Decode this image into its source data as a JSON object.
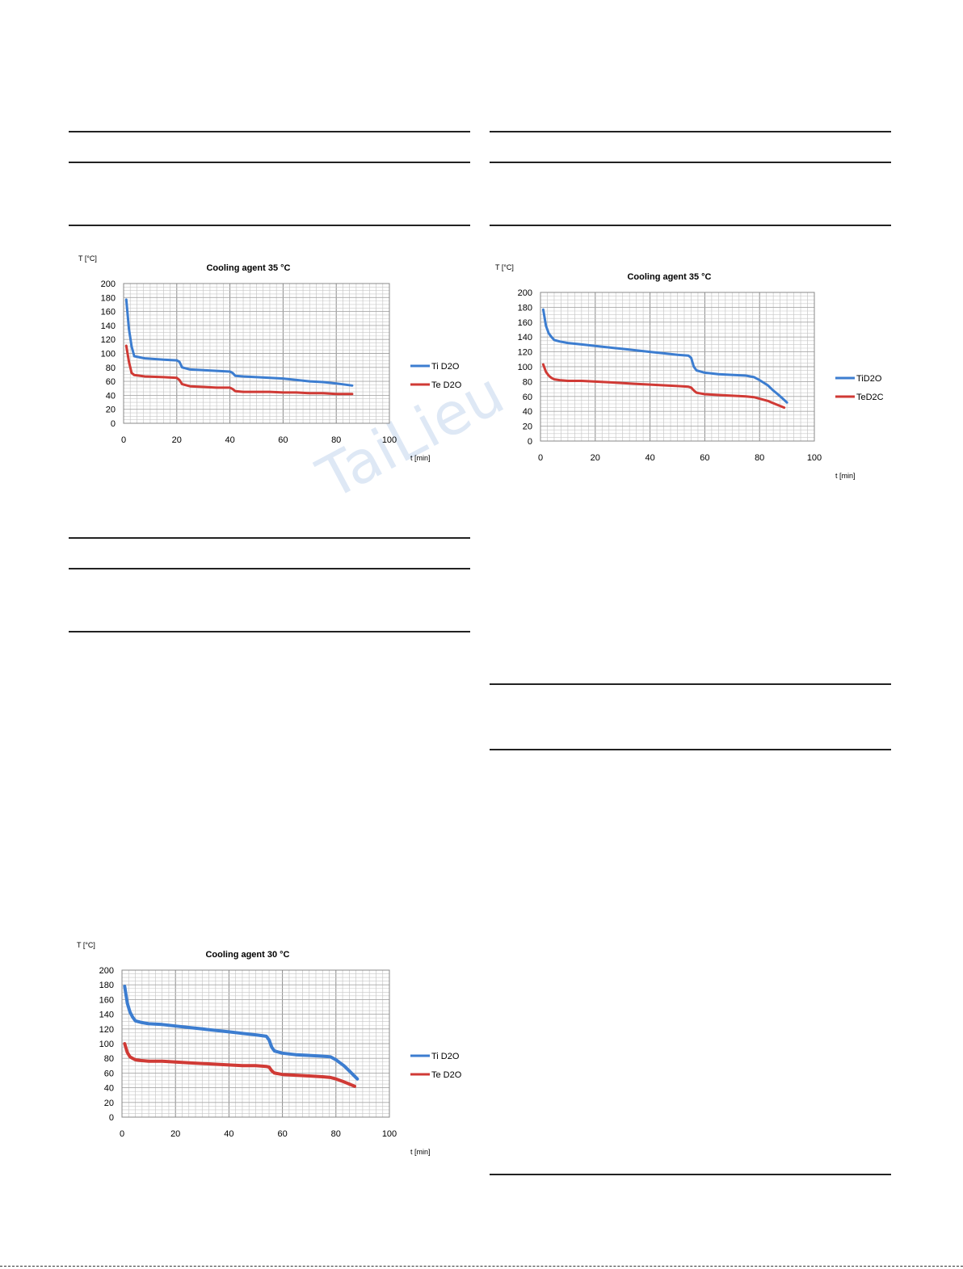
{
  "watermark": "TaiLieu",
  "colors": {
    "ti": "#3c7dd0",
    "te": "#d03a35",
    "grid": "#c8c8c8",
    "majorGrid": "#8a8a8a"
  },
  "chart_data": [
    {
      "type": "line",
      "title": "Cooling agent 35 °C",
      "ylabel": "T [°C]",
      "xlabel": "t [min]",
      "xlim": [
        0,
        100
      ],
      "ylim": [
        0,
        200
      ],
      "xticks": [
        0,
        20,
        40,
        60,
        80,
        100
      ],
      "yticks": [
        0,
        20,
        40,
        60,
        80,
        100,
        120,
        140,
        160,
        180,
        200
      ],
      "grid": true,
      "legend": "right",
      "series": [
        {
          "name": "Ti D2O",
          "color": "#3c7dd0",
          "x": [
            1,
            2,
            3,
            4,
            8,
            15,
            20,
            21,
            22,
            25,
            30,
            35,
            40,
            41,
            42,
            45,
            50,
            55,
            60,
            65,
            70,
            75,
            80,
            86
          ],
          "y": [
            177,
            135,
            110,
            96,
            93,
            91,
            90,
            88,
            80,
            77,
            76,
            75,
            74,
            72,
            68,
            67,
            66,
            65,
            64,
            62,
            60,
            59,
            57,
            54
          ]
        },
        {
          "name": "Te D2O",
          "color": "#d03a35",
          "x": [
            1,
            2,
            3,
            4,
            8,
            15,
            20,
            21,
            22,
            25,
            30,
            35,
            40,
            41,
            42,
            45,
            50,
            55,
            60,
            65,
            70,
            75,
            80,
            86
          ],
          "y": [
            111,
            88,
            72,
            69,
            67,
            66,
            65,
            62,
            56,
            53,
            52,
            51,
            51,
            49,
            46,
            45,
            45,
            45,
            44,
            44,
            43,
            43,
            42,
            42
          ]
        }
      ]
    },
    {
      "type": "line",
      "title": "Cooling agent 35 °C",
      "ylabel": "T [°C]",
      "xlabel": "t [min]",
      "xlim": [
        0,
        100
      ],
      "ylim": [
        0,
        200
      ],
      "xticks": [
        0,
        20,
        40,
        60,
        80,
        100
      ],
      "yticks": [
        0,
        20,
        40,
        60,
        80,
        100,
        120,
        140,
        160,
        180,
        200
      ],
      "grid": true,
      "legend": "right",
      "series": [
        {
          "name": "TiD2O",
          "color": "#3c7dd0",
          "x": [
            1,
            2,
            3,
            4,
            5,
            7,
            10,
            15,
            20,
            25,
            30,
            35,
            40,
            45,
            50,
            54,
            55,
            56,
            57,
            60,
            65,
            70,
            75,
            78,
            80,
            83,
            85,
            87,
            90
          ],
          "y": [
            177,
            155,
            145,
            140,
            136,
            134,
            132,
            130,
            128,
            126,
            124,
            122,
            120,
            118,
            116,
            115,
            112,
            100,
            95,
            92,
            90,
            89,
            88,
            86,
            82,
            75,
            68,
            62,
            52
          ]
        },
        {
          "name": "TeD2C",
          "color": "#d03a35",
          "x": [
            1,
            2,
            3,
            4,
            5,
            7,
            10,
            15,
            20,
            25,
            30,
            35,
            40,
            45,
            50,
            54,
            55,
            56,
            57,
            60,
            65,
            70,
            75,
            78,
            80,
            83,
            85,
            89
          ],
          "y": [
            103,
            93,
            88,
            85,
            83,
            82,
            81,
            81,
            80,
            79,
            78,
            77,
            76,
            75,
            74,
            73,
            72,
            68,
            65,
            63,
            62,
            61,
            60,
            59,
            57,
            54,
            51,
            45
          ]
        }
      ]
    },
    {
      "type": "line",
      "title": "Cooling agent 30 °C",
      "ylabel": "T [°C]",
      "xlabel": "t [min]",
      "xlim": [
        0,
        100
      ],
      "ylim": [
        0,
        200
      ],
      "xticks": [
        0,
        20,
        40,
        60,
        80,
        100
      ],
      "yticks": [
        0,
        20,
        40,
        60,
        80,
        100,
        120,
        140,
        160,
        180,
        200
      ],
      "grid": true,
      "legend": "right",
      "series": [
        {
          "name": "Ti D2O",
          "color": "#3c7dd0",
          "x": [
            1,
            2,
            3,
            4,
            5,
            7,
            10,
            15,
            20,
            25,
            30,
            35,
            40,
            45,
            50,
            54,
            55,
            56,
            57,
            60,
            65,
            70,
            75,
            78,
            80,
            83,
            85,
            88
          ],
          "y": [
            178,
            155,
            143,
            136,
            131,
            129,
            127,
            126,
            124,
            122,
            120,
            118,
            116,
            114,
            112,
            110,
            105,
            95,
            90,
            87,
            85,
            84,
            83,
            82,
            78,
            70,
            63,
            52
          ]
        },
        {
          "name": "Te D2O",
          "color": "#d03a35",
          "x": [
            1,
            2,
            3,
            4,
            5,
            7,
            10,
            15,
            20,
            25,
            30,
            35,
            40,
            45,
            50,
            54,
            55,
            56,
            57,
            60,
            65,
            70,
            75,
            78,
            80,
            83,
            85,
            87
          ],
          "y": [
            100,
            88,
            82,
            80,
            78,
            77,
            76,
            76,
            75,
            74,
            73,
            72,
            71,
            70,
            70,
            69,
            68,
            63,
            60,
            58,
            57,
            56,
            55,
            54,
            52,
            48,
            45,
            42
          ]
        }
      ]
    }
  ]
}
